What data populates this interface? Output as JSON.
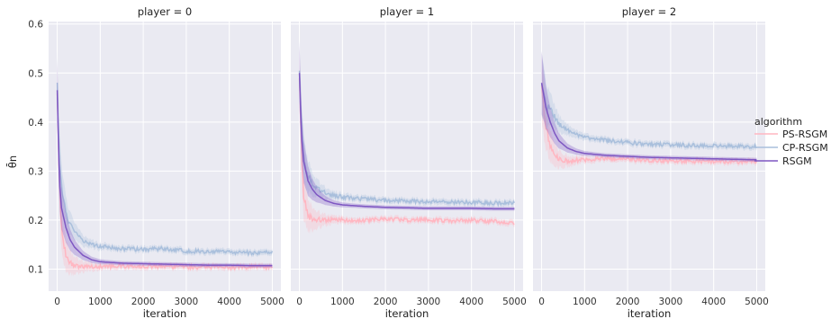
{
  "chart_data": {
    "type": "line",
    "ylabel": "θ̄n",
    "xlabel": "iteration",
    "xlim": [
      -200,
      5200
    ],
    "ylim": [
      0.055,
      0.605
    ],
    "x_ticks": [
      "0",
      "1000",
      "2000",
      "3000",
      "4000",
      "5000"
    ],
    "y_ticks": [
      "0.1",
      "0.2",
      "0.3",
      "0.4",
      "0.5",
      "0.6"
    ],
    "grid": true,
    "legend": {
      "title": "algorithm",
      "placement": "right",
      "entries": [
        "PS-RSGM",
        "CP-RSGM",
        "RSGM"
      ]
    },
    "series_colors": {
      "PS-RSGM": "#ffb6c1",
      "CP-RSGM": "#a9bfdc",
      "RSGM": "#7e57c2"
    },
    "panels": [
      {
        "title": "player = 0",
        "series": [
          {
            "name": "PS-RSGM",
            "x": [
              0,
              50,
              100,
              200,
              300,
              400,
              600,
              800,
              1000,
              1500,
              2000,
              2500,
              3000,
              3500,
              4000,
              4500,
              5000
            ],
            "y": [
              0.47,
              0.28,
              0.18,
              0.13,
              0.113,
              0.107,
              0.105,
              0.104,
              0.105,
              0.106,
              0.105,
              0.106,
              0.104,
              0.105,
              0.103,
              0.105,
              0.104
            ]
          },
          {
            "name": "CP-RSGM",
            "x": [
              0,
              50,
              100,
              200,
              300,
              400,
              600,
              800,
              1000,
              1500,
              2000,
              2500,
              3000,
              3500,
              4000,
              4500,
              5000
            ],
            "y": [
              0.47,
              0.33,
              0.27,
              0.215,
              0.19,
              0.175,
              0.158,
              0.15,
              0.146,
              0.142,
              0.14,
              0.142,
              0.137,
              0.136,
              0.135,
              0.133,
              0.135
            ]
          },
          {
            "name": "RSGM",
            "x": [
              0,
              50,
              100,
              200,
              300,
              400,
              600,
              800,
              1000,
              1500,
              2000,
              2500,
              3000,
              3500,
              4000,
              4500,
              5000
            ],
            "y": [
              0.465,
              0.28,
              0.225,
              0.185,
              0.16,
              0.145,
              0.128,
              0.119,
              0.115,
              0.112,
              0.111,
              0.11,
              0.109,
              0.108,
              0.108,
              0.107,
              0.107
            ]
          }
        ]
      },
      {
        "title": "player = 1",
        "series": [
          {
            "name": "PS-RSGM",
            "x": [
              0,
              50,
              100,
              200,
              300,
              400,
              600,
              800,
              1000,
              1500,
              2000,
              2500,
              3000,
              3500,
              4000,
              4500,
              5000
            ],
            "y": [
              0.5,
              0.34,
              0.25,
              0.21,
              0.203,
              0.202,
              0.2,
              0.201,
              0.2,
              0.199,
              0.202,
              0.2,
              0.201,
              0.198,
              0.2,
              0.197,
              0.195
            ]
          },
          {
            "name": "CP-RSGM",
            "x": [
              0,
              50,
              100,
              200,
              300,
              400,
              600,
              800,
              1000,
              1500,
              2000,
              2500,
              3000,
              3500,
              4000,
              4500,
              5000
            ],
            "y": [
              0.5,
              0.38,
              0.33,
              0.29,
              0.275,
              0.265,
              0.255,
              0.25,
              0.247,
              0.243,
              0.24,
              0.238,
              0.238,
              0.236,
              0.236,
              0.235,
              0.234
            ]
          },
          {
            "name": "RSGM",
            "x": [
              0,
              50,
              100,
              200,
              300,
              400,
              600,
              800,
              1000,
              1500,
              2000,
              2500,
              3000,
              3500,
              4000,
              4500,
              5000
            ],
            "y": [
              0.5,
              0.37,
              0.32,
              0.28,
              0.263,
              0.252,
              0.24,
              0.234,
              0.231,
              0.228,
              0.226,
              0.225,
              0.224,
              0.224,
              0.224,
              0.223,
              0.223
            ]
          }
        ]
      },
      {
        "title": "player = 2",
        "series": [
          {
            "name": "PS-RSGM",
            "x": [
              0,
              50,
              100,
              200,
              300,
              400,
              600,
              800,
              1000,
              1500,
              2000,
              2500,
              3000,
              3500,
              4000,
              4500,
              5000
            ],
            "y": [
              0.48,
              0.42,
              0.39,
              0.355,
              0.335,
              0.325,
              0.32,
              0.322,
              0.323,
              0.325,
              0.324,
              0.322,
              0.321,
              0.32,
              0.32,
              0.319,
              0.318
            ]
          },
          {
            "name": "CP-RSGM",
            "x": [
              0,
              50,
              100,
              200,
              300,
              400,
              600,
              800,
              1000,
              1500,
              2000,
              2500,
              3000,
              3500,
              4000,
              4500,
              5000
            ],
            "y": [
              0.48,
              0.45,
              0.44,
              0.425,
              0.41,
              0.395,
              0.383,
              0.375,
              0.37,
              0.362,
              0.358,
              0.355,
              0.354,
              0.352,
              0.352,
              0.351,
              0.35
            ]
          },
          {
            "name": "RSGM",
            "x": [
              0,
              50,
              100,
              200,
              300,
              400,
              600,
              800,
              1000,
              1500,
              2000,
              2500,
              3000,
              3500,
              4000,
              4500,
              5000
            ],
            "y": [
              0.48,
              0.455,
              0.43,
              0.4,
              0.378,
              0.362,
              0.347,
              0.34,
              0.336,
              0.332,
              0.33,
              0.328,
              0.327,
              0.326,
              0.325,
              0.324,
              0.323
            ]
          }
        ]
      }
    ]
  }
}
